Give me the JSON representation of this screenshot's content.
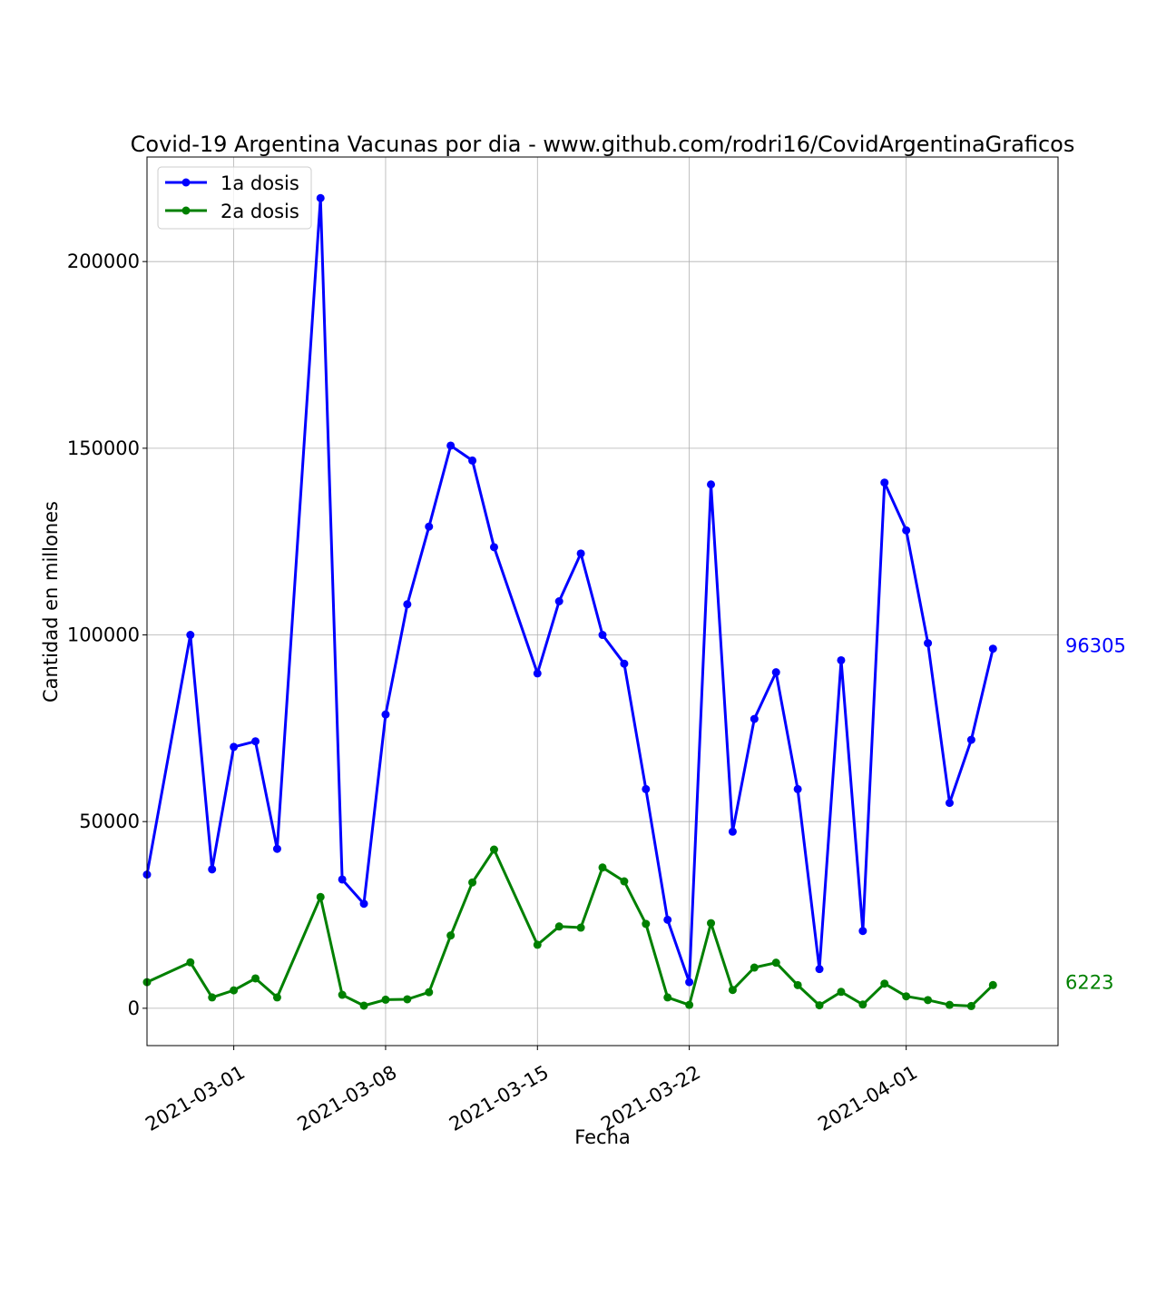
{
  "chart_data": {
    "type": "line",
    "title": "Covid-19 Argentina Vacunas por dia - www.github.com/rodri16/CovidArgentinaGraficos",
    "xlabel": "Fecha",
    "ylabel": "Cantidad en millones",
    "xlim": [
      "2021-02-25",
      "2021-04-08"
    ],
    "ylim": [
      -10000,
      228000
    ],
    "x_ticks": [
      "2021-03-01",
      "2021-03-08",
      "2021-03-15",
      "2021-03-22",
      "2021-04-01"
    ],
    "y_ticks": [
      0,
      50000,
      100000,
      150000,
      200000
    ],
    "y_tick_labels": [
      "0",
      "50000",
      "100000",
      "150000",
      "200000"
    ],
    "grid": true,
    "legend_position": "top-left",
    "series": [
      {
        "name": "1a dosis",
        "color": "#0000ff",
        "last_value_label": "96305",
        "points": [
          [
            "2021-02-25",
            35800
          ],
          [
            "2021-02-27",
            100000
          ],
          [
            "2021-02-28",
            37200
          ],
          [
            "2021-03-01",
            70000
          ],
          [
            "2021-03-02",
            71500
          ],
          [
            "2021-03-03",
            42700
          ],
          [
            "2021-03-05",
            217000
          ],
          [
            "2021-03-06",
            34500
          ],
          [
            "2021-03-07",
            28000
          ],
          [
            "2021-03-08",
            78700
          ],
          [
            "2021-03-09",
            108200
          ],
          [
            "2021-03-10",
            129000
          ],
          [
            "2021-03-11",
            150700
          ],
          [
            "2021-03-12",
            146700
          ],
          [
            "2021-03-13",
            123500
          ],
          [
            "2021-03-15",
            89700
          ],
          [
            "2021-03-16",
            109000
          ],
          [
            "2021-03-17",
            121800
          ],
          [
            "2021-03-18",
            100000
          ],
          [
            "2021-03-19",
            92300
          ],
          [
            "2021-03-20",
            58700
          ],
          [
            "2021-03-21",
            23700
          ],
          [
            "2021-03-22",
            7000
          ],
          [
            "2021-03-23",
            140300
          ],
          [
            "2021-03-24",
            47300
          ],
          [
            "2021-03-25",
            77500
          ],
          [
            "2021-03-26",
            90000
          ],
          [
            "2021-03-27",
            58700
          ],
          [
            "2021-03-28",
            10500
          ],
          [
            "2021-03-29",
            93200
          ],
          [
            "2021-03-30",
            20700
          ],
          [
            "2021-03-31",
            140800
          ],
          [
            "2021-04-01",
            128000
          ],
          [
            "2021-04-02",
            97800
          ],
          [
            "2021-04-03",
            55000
          ],
          [
            "2021-04-04",
            71900
          ],
          [
            "2021-04-05",
            96305
          ]
        ]
      },
      {
        "name": "2a dosis",
        "color": "#008000",
        "last_value_label": "6223",
        "points": [
          [
            "2021-02-25",
            7000
          ],
          [
            "2021-02-27",
            12300
          ],
          [
            "2021-02-28",
            2900
          ],
          [
            "2021-03-01",
            4800
          ],
          [
            "2021-03-02",
            8000
          ],
          [
            "2021-03-03",
            2900
          ],
          [
            "2021-03-05",
            29800
          ],
          [
            "2021-03-06",
            3600
          ],
          [
            "2021-03-07",
            700
          ],
          [
            "2021-03-08",
            2300
          ],
          [
            "2021-03-09",
            2400
          ],
          [
            "2021-03-10",
            4300
          ],
          [
            "2021-03-11",
            19500
          ],
          [
            "2021-03-12",
            33700
          ],
          [
            "2021-03-13",
            42500
          ],
          [
            "2021-03-15",
            17000
          ],
          [
            "2021-03-16",
            21900
          ],
          [
            "2021-03-17",
            21600
          ],
          [
            "2021-03-18",
            37700
          ],
          [
            "2021-03-19",
            34000
          ],
          [
            "2021-03-20",
            22600
          ],
          [
            "2021-03-21",
            2900
          ],
          [
            "2021-03-22",
            900
          ],
          [
            "2021-03-23",
            22800
          ],
          [
            "2021-03-24",
            4900
          ],
          [
            "2021-03-25",
            10900
          ],
          [
            "2021-03-26",
            12200
          ],
          [
            "2021-03-27",
            6200
          ],
          [
            "2021-03-28",
            800
          ],
          [
            "2021-03-29",
            4400
          ],
          [
            "2021-03-30",
            1000
          ],
          [
            "2021-03-31",
            6600
          ],
          [
            "2021-04-01",
            3200
          ],
          [
            "2021-04-02",
            2200
          ],
          [
            "2021-04-03",
            900
          ],
          [
            "2021-04-04",
            600
          ],
          [
            "2021-04-05",
            6223
          ]
        ]
      }
    ]
  }
}
